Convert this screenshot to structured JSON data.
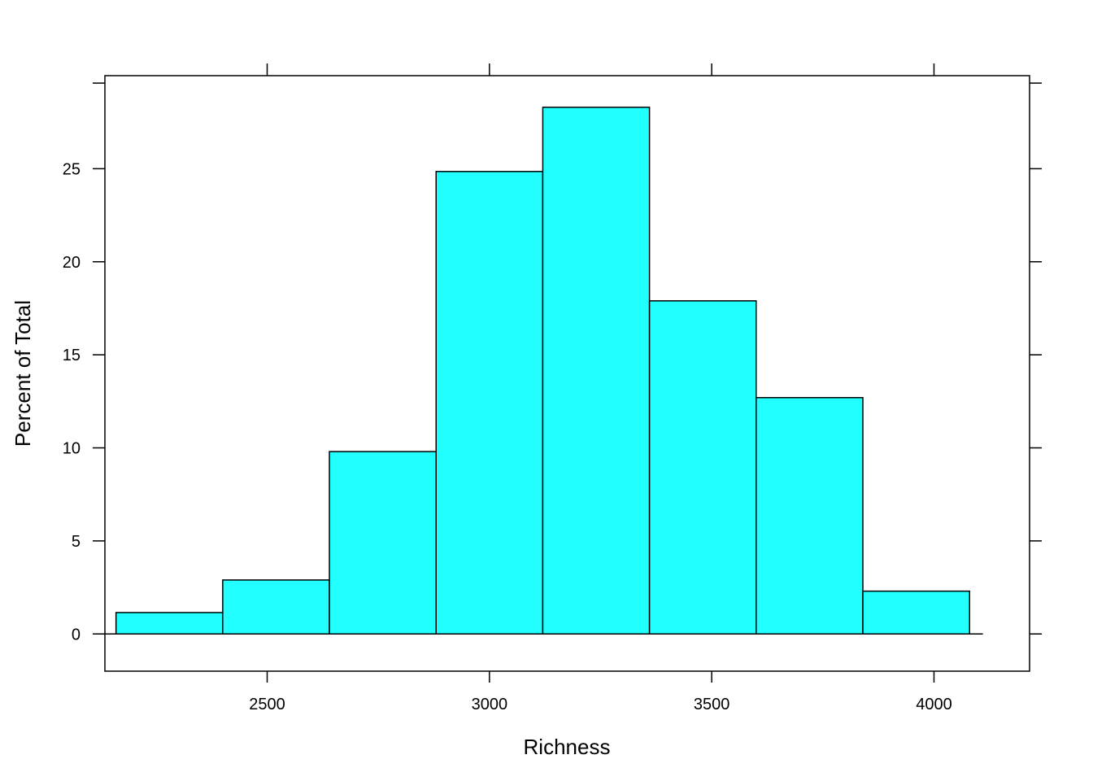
{
  "chart_data": {
    "type": "bar",
    "title": "",
    "xlabel": "Richness",
    "ylabel": "Percent of Total",
    "bin_edges": [
      2160,
      2400,
      2640,
      2880,
      3120,
      3360,
      3600,
      3840,
      4080
    ],
    "values": [
      1.15,
      2.9,
      9.8,
      24.85,
      28.3,
      17.9,
      12.7,
      2.3
    ],
    "xlim": [
      2135,
      4215
    ],
    "ylim": [
      -2,
      30
    ],
    "xticks": [
      2500,
      3000,
      3500,
      4000
    ],
    "yticks": [
      0,
      5,
      10,
      15,
      20,
      25
    ],
    "xtick_labels": [
      "2500",
      "3000",
      "3500",
      "4000"
    ],
    "ytick_labels": [
      "0",
      "5",
      "10",
      "15",
      "20",
      "25"
    ],
    "bar_color": "#22FFFF",
    "baseline_x": [
      2135,
      4110
    ],
    "grid": false,
    "legend": false
  }
}
